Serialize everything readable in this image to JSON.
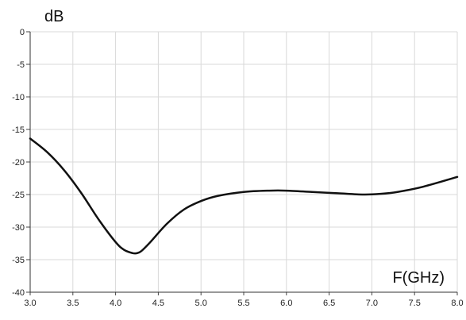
{
  "chart_data": {
    "type": "line",
    "title": "",
    "xlabel": "F(GHz)",
    "ylabel": "dB",
    "xlim": [
      3.0,
      8.0
    ],
    "ylim": [
      -40,
      0
    ],
    "x_ticks": [
      3.0,
      3.5,
      4.0,
      4.5,
      5.0,
      5.5,
      6.0,
      6.5,
      7.0,
      7.5,
      8.0
    ],
    "x_tick_labels": [
      "3.0",
      "3.5",
      "4.0",
      "4.5",
      "5.0",
      "5.5",
      "6.0",
      "6.5",
      "7.0",
      "7.5",
      "8.0"
    ],
    "y_ticks": [
      0,
      -5,
      -10,
      -15,
      -20,
      -25,
      -30,
      -35,
      -40
    ],
    "y_tick_labels": [
      "0",
      "-5",
      "-10",
      "-15",
      "-20",
      "-25",
      "-30",
      "-35",
      "-40"
    ],
    "grid": true,
    "line_color": "#111111",
    "grid_color": "#d9d9d9",
    "series": [
      {
        "x": [
          3.0,
          3.2,
          3.4,
          3.6,
          3.8,
          4.0,
          4.1,
          4.2,
          4.25,
          4.3,
          4.4,
          4.6,
          4.8,
          5.0,
          5.2,
          5.5,
          5.8,
          6.0,
          6.3,
          6.6,
          6.9,
          7.1,
          7.3,
          7.6,
          8.0
        ],
        "y": [
          -16.4,
          -18.5,
          -21.3,
          -24.8,
          -28.8,
          -32.3,
          -33.5,
          -34.0,
          -34.0,
          -33.7,
          -32.4,
          -29.5,
          -27.3,
          -26.0,
          -25.2,
          -24.6,
          -24.4,
          -24.4,
          -24.6,
          -24.8,
          -25.0,
          -24.9,
          -24.6,
          -23.8,
          -22.3
        ]
      }
    ]
  }
}
